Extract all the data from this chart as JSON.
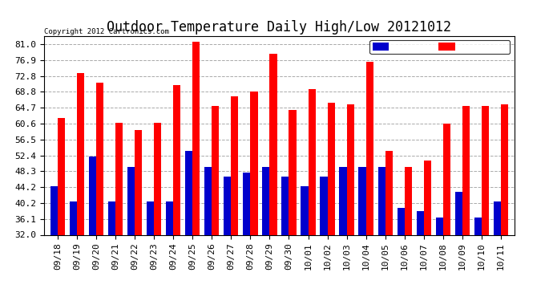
{
  "title": "Outdoor Temperature Daily High/Low 20121012",
  "copyright_text": "Copyright 2012 Cartronics.com",
  "categories": [
    "09/18",
    "09/19",
    "09/20",
    "09/21",
    "09/22",
    "09/23",
    "09/24",
    "09/25",
    "09/26",
    "09/27",
    "09/28",
    "09/29",
    "09/30",
    "10/01",
    "10/02",
    "10/03",
    "10/04",
    "10/05",
    "10/06",
    "10/07",
    "10/08",
    "10/09",
    "10/10",
    "10/11"
  ],
  "high_values": [
    62.0,
    73.5,
    71.0,
    60.8,
    58.8,
    60.8,
    70.5,
    81.5,
    65.0,
    67.5,
    68.8,
    78.5,
    64.0,
    69.5,
    66.0,
    65.5,
    76.5,
    53.5,
    49.5,
    51.0,
    60.5,
    65.0,
    65.0,
    65.5
  ],
  "low_values": [
    44.5,
    40.5,
    52.0,
    40.5,
    49.5,
    40.5,
    40.5,
    53.5,
    49.5,
    47.0,
    48.0,
    49.5,
    47.0,
    44.5,
    47.0,
    49.5,
    49.5,
    49.5,
    39.0,
    38.0,
    36.5,
    43.0,
    36.5,
    40.5
  ],
  "high_color": "#ff0000",
  "low_color": "#0000cc",
  "background_color": "#ffffff",
  "plot_bg_color": "#ffffff",
  "grid_color": "#aaaaaa",
  "ymin": 32.0,
  "ymax": 83.0,
  "yticks": [
    32.0,
    36.1,
    40.2,
    44.2,
    48.3,
    52.4,
    56.5,
    60.6,
    64.7,
    68.8,
    72.8,
    76.9,
    81.0
  ],
  "title_fontsize": 12,
  "tick_fontsize": 8,
  "bar_width": 0.38
}
